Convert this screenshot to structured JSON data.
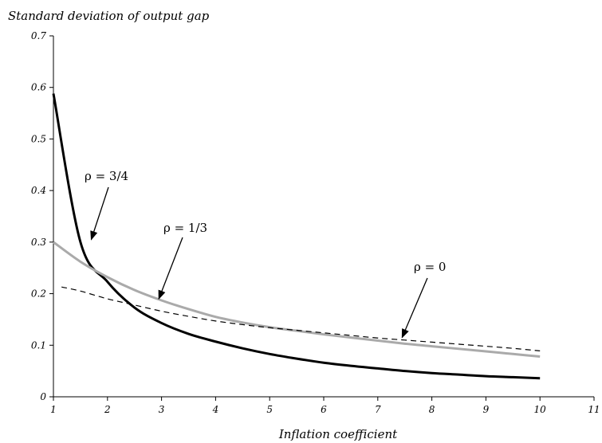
{
  "chart_data": {
    "type": "line",
    "title": "",
    "ylabel": "Standard deviation of output gap",
    "xlabel": "Inflation coefficient",
    "xlim": [
      1,
      11
    ],
    "ylim": [
      0,
      0.7
    ],
    "xticks": [
      "1",
      "2",
      "3",
      "4",
      "5",
      "6",
      "7",
      "8",
      "9",
      "10",
      "11"
    ],
    "yticks": [
      "0",
      "0.1",
      "0.2",
      "0.3",
      "0.4",
      "0.5",
      "0.6",
      "0.7"
    ],
    "grid": false,
    "legend": "none",
    "x": [
      1,
      1.5,
      2,
      2.5,
      3,
      3.5,
      4,
      4.5,
      5,
      5.5,
      6,
      6.5,
      7,
      7.5,
      8,
      8.5,
      9,
      9.5,
      10
    ],
    "series": [
      {
        "key": "rho_3_4",
        "color": "#000000",
        "style": "solid",
        "values": [
          0.588,
          0.3,
          0.223,
          0.173,
          0.143,
          0.122,
          0.107,
          0.094,
          0.083,
          0.074,
          0.066,
          0.06,
          0.055,
          0.05,
          0.046,
          0.043,
          0.04,
          0.038,
          0.036
        ]
      },
      {
        "key": "rho_1_3",
        "color": "#aaaaaa",
        "style": "solid",
        "values": [
          0.3,
          0.262,
          0.232,
          0.207,
          0.187,
          0.17,
          0.155,
          0.144,
          0.135,
          0.128,
          0.121,
          0.115,
          0.109,
          0.103,
          0.098,
          0.093,
          0.088,
          0.083,
          0.078
        ]
      },
      {
        "key": "rho_0",
        "color": "#000000",
        "style": "dashed",
        "values": [
          null,
          0.205,
          0.19,
          0.178,
          0.166,
          0.156,
          0.147,
          0.14,
          0.134,
          0.129,
          0.124,
          0.119,
          0.114,
          0.11,
          0.106,
          0.102,
          0.098,
          0.094,
          0.089
        ]
      }
    ],
    "x_start_overrides": {
      "rho_0": [
        1.15,
        0.213
      ]
    },
    "annotations": [
      {
        "text": "ρ = 3/4",
        "series": "rho_3_4",
        "arrow_to": [
          1.7,
          0.305
        ]
      },
      {
        "text": "ρ = 1/3",
        "series": "rho_1_3",
        "arrow_to": [
          2.95,
          0.19
        ]
      },
      {
        "text": "ρ = 0",
        "series": "rho_0",
        "arrow_to": [
          7.45,
          0.115
        ]
      }
    ]
  }
}
